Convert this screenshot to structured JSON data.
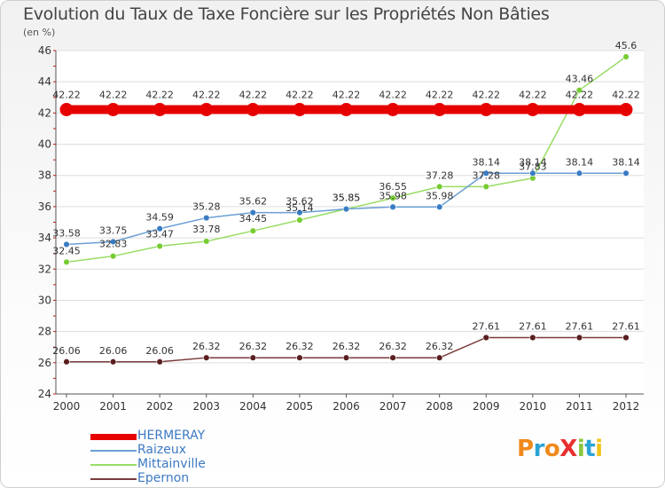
{
  "title": "Evolution du Taux de Taxe Foncière sur les Propriétés Non Bâties",
  "unit_label": "(en %)",
  "logo_text": "ProXiti",
  "chart_data": {
    "type": "line",
    "x": [
      "2000",
      "2001",
      "2002",
      "2003",
      "2004",
      "2005",
      "2006",
      "2007",
      "2008",
      "2009",
      "2010",
      "2011",
      "2012"
    ],
    "ylim": [
      24,
      46
    ],
    "yticks": [
      24,
      26,
      28,
      30,
      32,
      34,
      36,
      38,
      40,
      42,
      44,
      46
    ],
    "grid": "horizontal",
    "legend_position": "bottom-left",
    "series": [
      {
        "name": "HERMERAY",
        "color": "#e60000",
        "values": [
          42.22,
          42.22,
          42.22,
          42.22,
          42.22,
          42.22,
          42.22,
          42.22,
          42.22,
          42.22,
          42.22,
          42.22,
          42.22
        ],
        "labels": [
          "42.22",
          "42.22",
          "42.22",
          "42.22",
          "42.22",
          "42.22",
          "42.22",
          "42.22",
          "42.22",
          "42.22",
          "42.22",
          "42.22",
          "42.22"
        ]
      },
      {
        "name": "Raizeux",
        "color": "#6a9fd4",
        "marker": "#3a7cc4",
        "values": [
          33.58,
          33.75,
          34.59,
          35.28,
          35.62,
          35.62,
          35.85,
          35.98,
          35.98,
          38.14,
          38.14,
          38.14,
          38.14
        ],
        "labels": [
          "33.58",
          "33.75",
          "34.59",
          "35.28",
          "35.62",
          "35.62",
          "35.85",
          "35.98",
          "35.98",
          "38.14",
          "38.14",
          "38.14",
          "38.14"
        ]
      },
      {
        "name": "Mittainville",
        "color": "#99dd66",
        "marker": "#77cc33",
        "values": [
          32.45,
          32.83,
          33.47,
          33.78,
          34.45,
          35.14,
          35.85,
          36.55,
          37.28,
          37.28,
          37.83,
          43.46,
          45.6
        ],
        "labels": [
          "32.45",
          "32.83",
          "33.47",
          "33.78",
          "34.45",
          "35.14",
          "35.85",
          "36.55",
          "37.28",
          "37.28",
          "37.83",
          "43.46",
          "45.6"
        ]
      },
      {
        "name": "Epernon",
        "color": "#7a3b3b",
        "marker": "#5a1f1f",
        "values": [
          26.06,
          26.06,
          26.06,
          26.32,
          26.32,
          26.32,
          26.32,
          26.32,
          26.32,
          27.61,
          27.61,
          27.61,
          27.61
        ],
        "labels": [
          "26.06",
          "26.06",
          "26.06",
          "26.32",
          "26.32",
          "26.32",
          "26.32",
          "26.32",
          "26.32",
          "27.61",
          "27.61",
          "27.61",
          "27.61"
        ]
      }
    ]
  }
}
